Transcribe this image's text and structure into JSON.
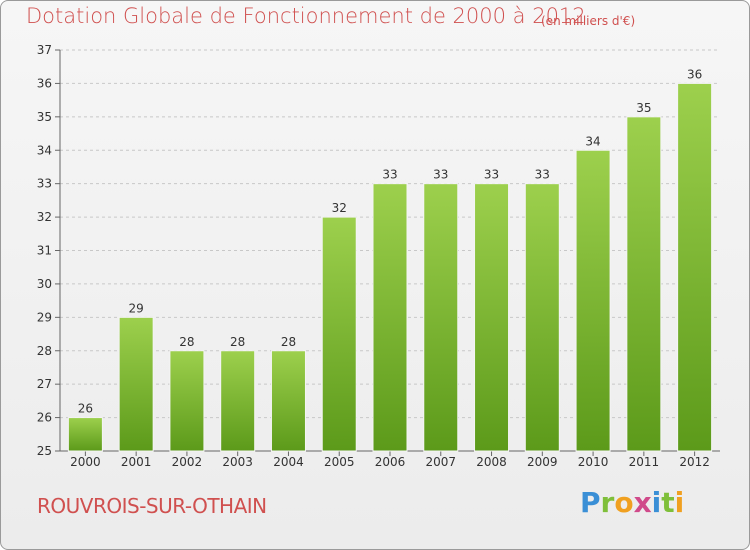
{
  "header": {
    "title": "Dotation Globale de Fonctionnement de 2000 à 2012",
    "unit": "(en milliers d'€)"
  },
  "footer": {
    "commune": "ROUVROIS-SUR-OTHAIN",
    "logo_letters": [
      "P",
      "r",
      "o",
      "x",
      "i",
      "t",
      "i"
    ],
    "logo_colors": [
      "#3a8fd6",
      "#7fbf3a",
      "#f0a020",
      "#d04a8a",
      "#3a8fd6",
      "#7fbf3a",
      "#f0a020"
    ]
  },
  "colors": {
    "bar_top": "#9dd04d",
    "bar_bottom": "#5c9a1a",
    "grid": "#c8c8c8",
    "text": "#333333",
    "accent": "#d0504f"
  },
  "chart_data": {
    "type": "bar",
    "title": "Dotation Globale de Fonctionnement de 2000 à 2012",
    "categories": [
      "2000",
      "2001",
      "2002",
      "2003",
      "2004",
      "2005",
      "2006",
      "2007",
      "2008",
      "2009",
      "2010",
      "2011",
      "2012"
    ],
    "values": [
      26,
      29,
      28,
      28,
      28,
      32,
      33,
      33,
      33,
      33,
      34,
      35,
      36
    ],
    "xlabel": "",
    "ylabel": "",
    "ylim": [
      25,
      37
    ],
    "yticks": [
      25,
      26,
      27,
      28,
      29,
      30,
      31,
      32,
      33,
      34,
      35,
      36,
      37
    ],
    "grid": true,
    "data_labels": true
  }
}
